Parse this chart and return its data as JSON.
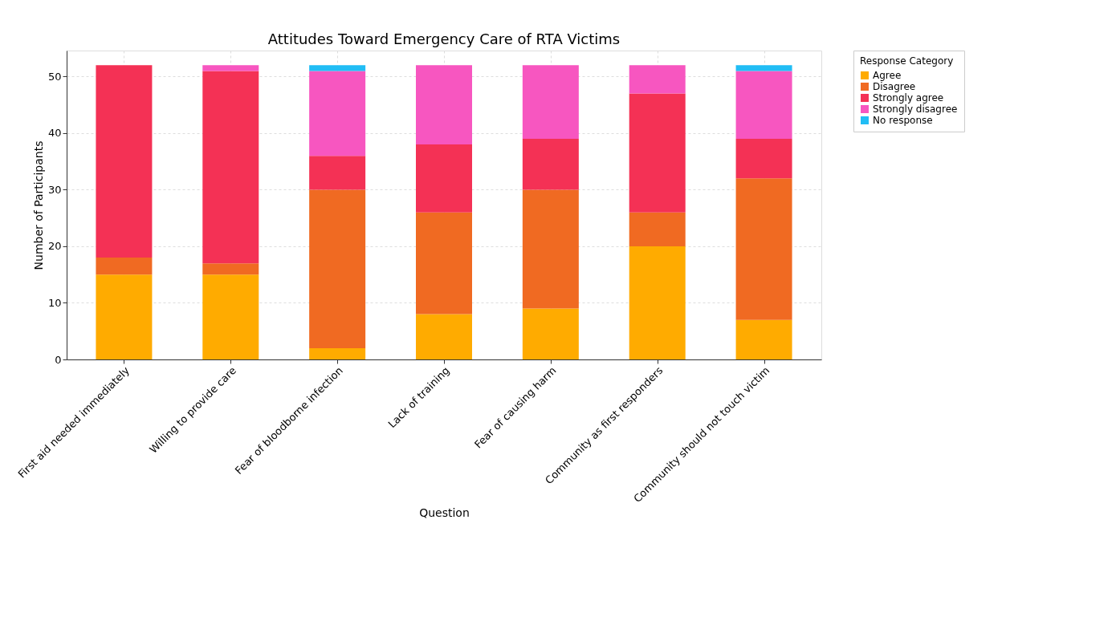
{
  "chart_data": {
    "type": "bar",
    "stacked": true,
    "title": "Attitudes Toward Emergency Care of RTA Victims",
    "xlabel": "Question",
    "ylabel": "Number of Participants",
    "legend_title": "Response Category",
    "legend": "top right",
    "grid": true,
    "categories": [
      "First aid needed immediately",
      "Willing to provide care",
      "Fear of bloodborne infection",
      "Lack of training",
      "Fear of causing harm",
      "Community as first responders",
      "Community should not touch victim"
    ],
    "series": [
      {
        "name": "Agree",
        "color": "#ffab00",
        "values": [
          15,
          15,
          2,
          8,
          9,
          20,
          7
        ]
      },
      {
        "name": "Disagree",
        "color": "#f06a22",
        "values": [
          3,
          2,
          28,
          18,
          21,
          6,
          25
        ]
      },
      {
        "name": "Strongly agree",
        "color": "#f43155",
        "values": [
          34,
          34,
          6,
          12,
          9,
          21,
          7
        ]
      },
      {
        "name": "Strongly disagree",
        "color": "#f756c0",
        "values": [
          0,
          1,
          15,
          14,
          13,
          5,
          12
        ]
      },
      {
        "name": "No response",
        "color": "#21bdf5",
        "values": [
          0,
          0,
          1,
          0,
          0,
          0,
          1
        ]
      }
    ],
    "ylim": [
      0,
      54.6
    ],
    "yticks": [
      0,
      10,
      20,
      30,
      40,
      50
    ]
  }
}
